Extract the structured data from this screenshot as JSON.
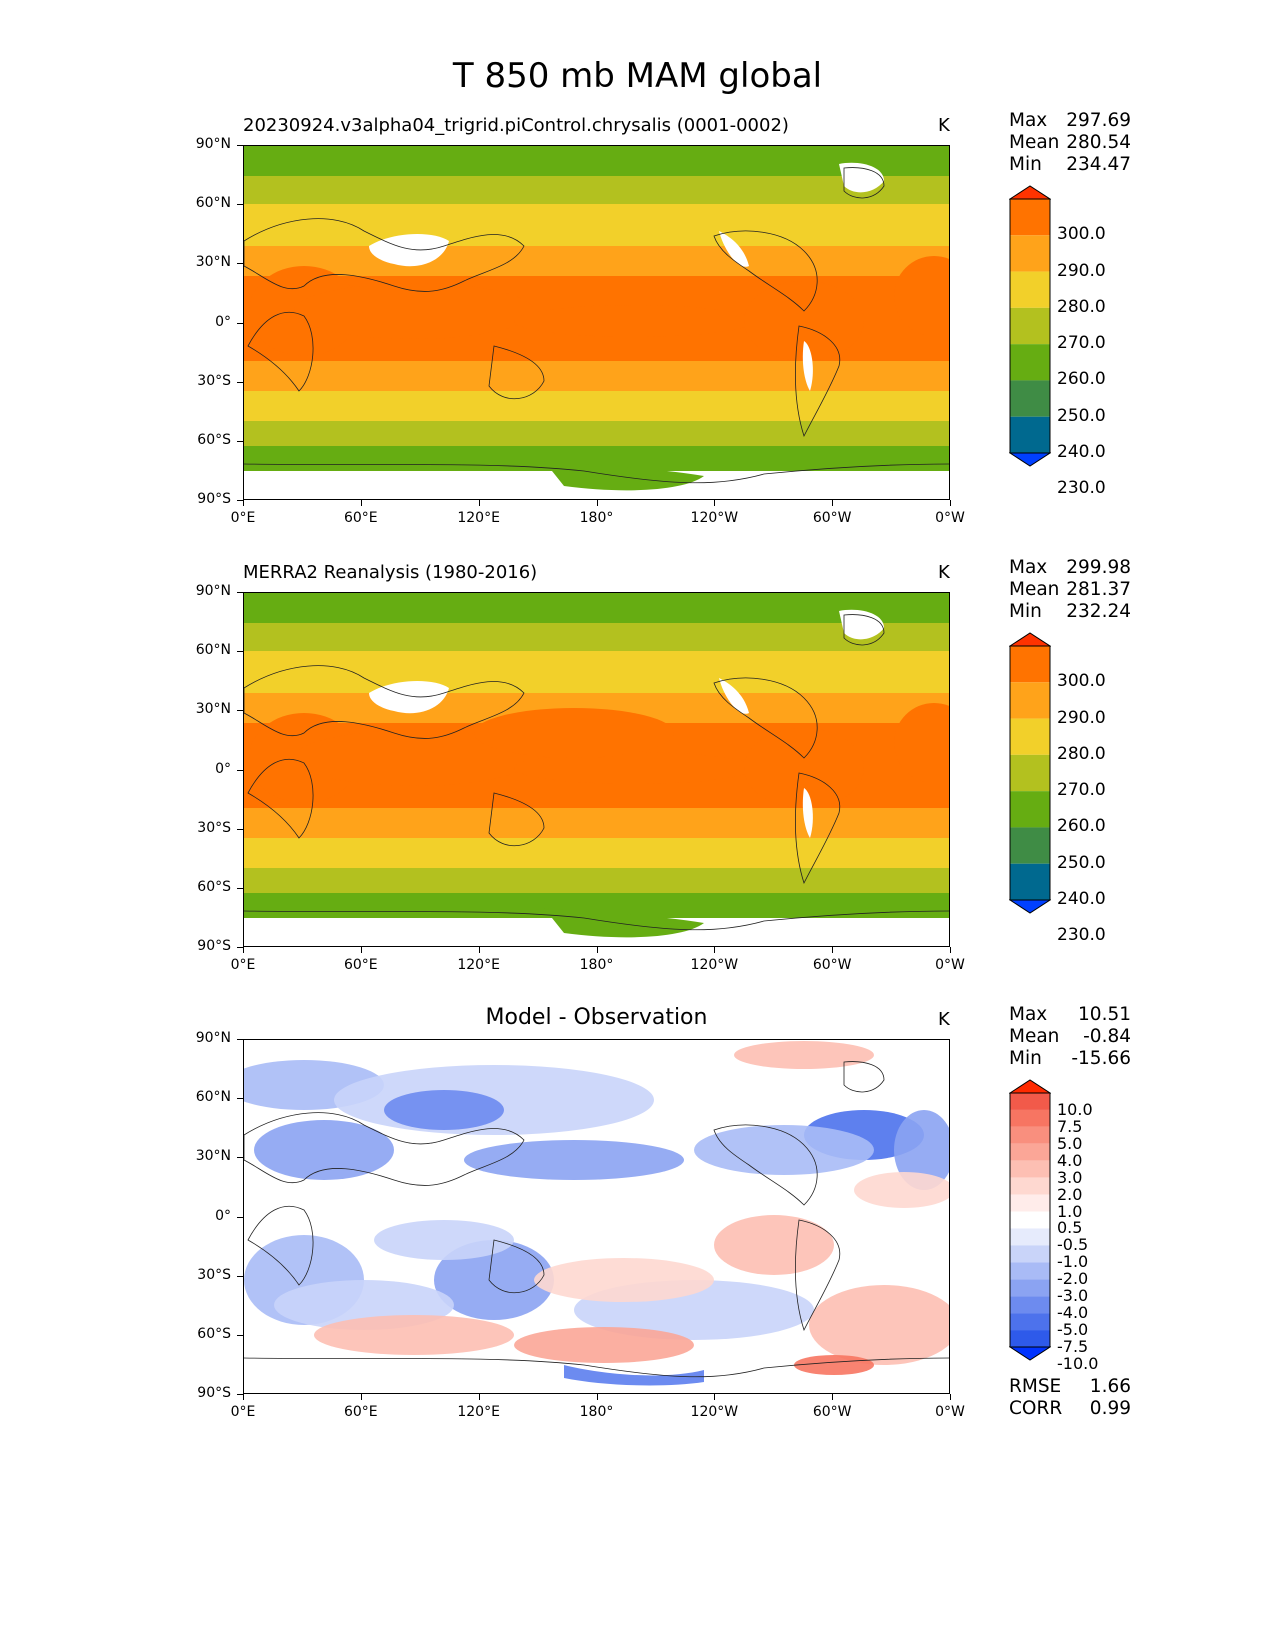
{
  "main_title": "T 850 mb MAM global",
  "panels": [
    {
      "title": "20230924.v3alpha04_trigrid.piControl.chrysalis (0001-0002)",
      "units": "K",
      "stats": [
        {
          "label": "Max",
          "value": "297.69"
        },
        {
          "label": "Mean",
          "value": "280.54"
        },
        {
          "label": "Min",
          "value": "234.47"
        }
      ]
    },
    {
      "title": "MERRA2 Reanalysis (1980-2016)",
      "units": "K",
      "stats": [
        {
          "label": "Max",
          "value": "299.98"
        },
        {
          "label": "Mean",
          "value": "281.37"
        },
        {
          "label": "Min",
          "value": "232.24"
        }
      ]
    },
    {
      "title": "Model - Observation",
      "units": "K",
      "stats": [
        {
          "label": "Max",
          "value": "10.51"
        },
        {
          "label": "Mean",
          "value": "-0.84"
        },
        {
          "label": "Min",
          "value": "-15.66"
        }
      ],
      "metrics": [
        {
          "label": "RMSE",
          "value": "1.66"
        },
        {
          "label": "CORR",
          "value": "0.99"
        }
      ]
    }
  ],
  "lat_ticks": [
    "90°N",
    "60°N",
    "30°N",
    "0°",
    "30°S",
    "60°S",
    "90°S"
  ],
  "lon_ticks": [
    "0°E",
    "60°E",
    "120°E",
    "180°",
    "120°W",
    "60°W",
    "0°W"
  ],
  "colorbar_abs": {
    "labels": [
      "300.0",
      "290.0",
      "280.0",
      "270.0",
      "260.0",
      "250.0",
      "240.0",
      "230.0"
    ],
    "colors": [
      "#ff3300",
      "#ff7300",
      "#ffa31a",
      "#f2d02a",
      "#b3c11f",
      "#66ad12",
      "#3f8c45",
      "#00698f",
      "#0040ff"
    ]
  },
  "colorbar_diff": {
    "labels": [
      "10.0",
      "7.5",
      "5.0",
      "4.0",
      "3.0",
      "2.0",
      "1.0",
      "0.5",
      "-0.5",
      "-1.0",
      "-2.0",
      "-3.0",
      "-4.0",
      "-5.0",
      "-7.5",
      "-10.0"
    ],
    "colors": [
      "#ff2a00",
      "#f25a4a",
      "#f77562",
      "#f98f7e",
      "#fba697",
      "#fdbfb3",
      "#fed8d0",
      "#ffecea",
      "#ffffff",
      "#e6ebfc",
      "#c9d4f9",
      "#a9bbf6",
      "#8ba3f2",
      "#6d8bef",
      "#4d72ec",
      "#2e5aea",
      "#0033ff"
    ]
  },
  "chart_data": [
    {
      "type": "heatmap",
      "title": "20230924.v3alpha04_trigrid.piControl.chrysalis (0001-0002)",
      "units": "K",
      "xlabel": "",
      "ylabel": "",
      "x_ticks": [
        "0°E",
        "60°E",
        "120°E",
        "180°",
        "120°W",
        "60°W",
        "0°W"
      ],
      "y_ticks": [
        "90°N",
        "60°N",
        "30°N",
        "0°",
        "30°S",
        "60°S",
        "90°S"
      ],
      "levels": [
        230,
        240,
        250,
        260,
        270,
        280,
        290,
        300
      ],
      "stats": {
        "max": 297.69,
        "mean": 280.54,
        "min": 234.47
      }
    },
    {
      "type": "heatmap",
      "title": "MERRA2 Reanalysis (1980-2016)",
      "units": "K",
      "xlabel": "",
      "ylabel": "",
      "x_ticks": [
        "0°E",
        "60°E",
        "120°E",
        "180°",
        "120°W",
        "60°W",
        "0°W"
      ],
      "y_ticks": [
        "90°N",
        "60°N",
        "30°N",
        "0°",
        "30°S",
        "60°S",
        "90°S"
      ],
      "levels": [
        230,
        240,
        250,
        260,
        270,
        280,
        290,
        300
      ],
      "stats": {
        "max": 299.98,
        "mean": 281.37,
        "min": 232.24
      }
    },
    {
      "type": "heatmap",
      "title": "Model - Observation",
      "units": "K",
      "xlabel": "",
      "ylabel": "",
      "x_ticks": [
        "0°E",
        "60°E",
        "120°E",
        "180°",
        "120°W",
        "60°W",
        "0°W"
      ],
      "y_ticks": [
        "90°N",
        "60°N",
        "30°N",
        "0°",
        "30°S",
        "60°S",
        "90°S"
      ],
      "levels": [
        -10,
        -7.5,
        -5,
        -4,
        -3,
        -2,
        -1,
        -0.5,
        0.5,
        1,
        2,
        3,
        4,
        5,
        7.5,
        10
      ],
      "stats": {
        "max": 10.51,
        "mean": -0.84,
        "min": -15.66,
        "rmse": 1.66,
        "corr": 0.99
      }
    }
  ]
}
